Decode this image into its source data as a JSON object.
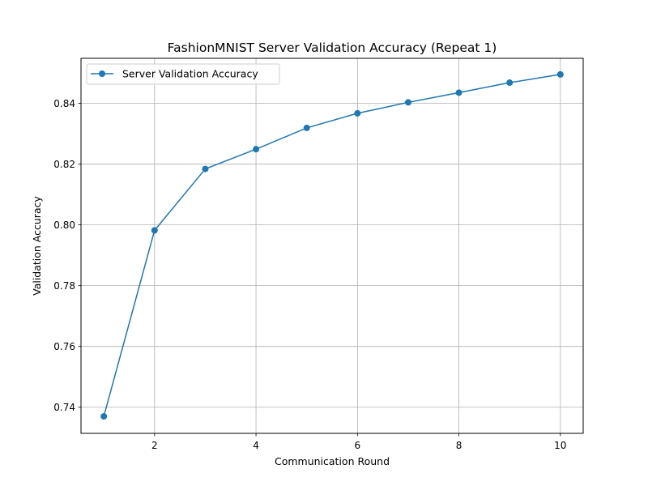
{
  "chart_data": {
    "type": "line",
    "title": "FashionMNIST Server Validation Accuracy (Repeat 1)",
    "xlabel": "Communication Round",
    "ylabel": "Validation Accuracy",
    "xlim": [
      0.55,
      10.45
    ],
    "ylim": [
      0.7314,
      0.8548
    ],
    "xticks": [
      2,
      4,
      6,
      8,
      10
    ],
    "yticks": [
      0.74,
      0.76,
      0.78,
      0.8,
      0.82,
      0.84
    ],
    "ytick_labels": [
      "0.74",
      "0.76",
      "0.78",
      "0.80",
      "0.82",
      "0.84"
    ],
    "grid": true,
    "legend_position": "upper-left",
    "series": [
      {
        "name": "Server Validation Accuracy",
        "color": "#1f77b4",
        "marker": "circle",
        "x": [
          1,
          2,
          3,
          4,
          5,
          6,
          7,
          8,
          9,
          10
        ],
        "values": [
          0.737,
          0.7982,
          0.8184,
          0.8249,
          0.8319,
          0.8367,
          0.8403,
          0.8435,
          0.8468,
          0.8495
        ]
      }
    ]
  }
}
